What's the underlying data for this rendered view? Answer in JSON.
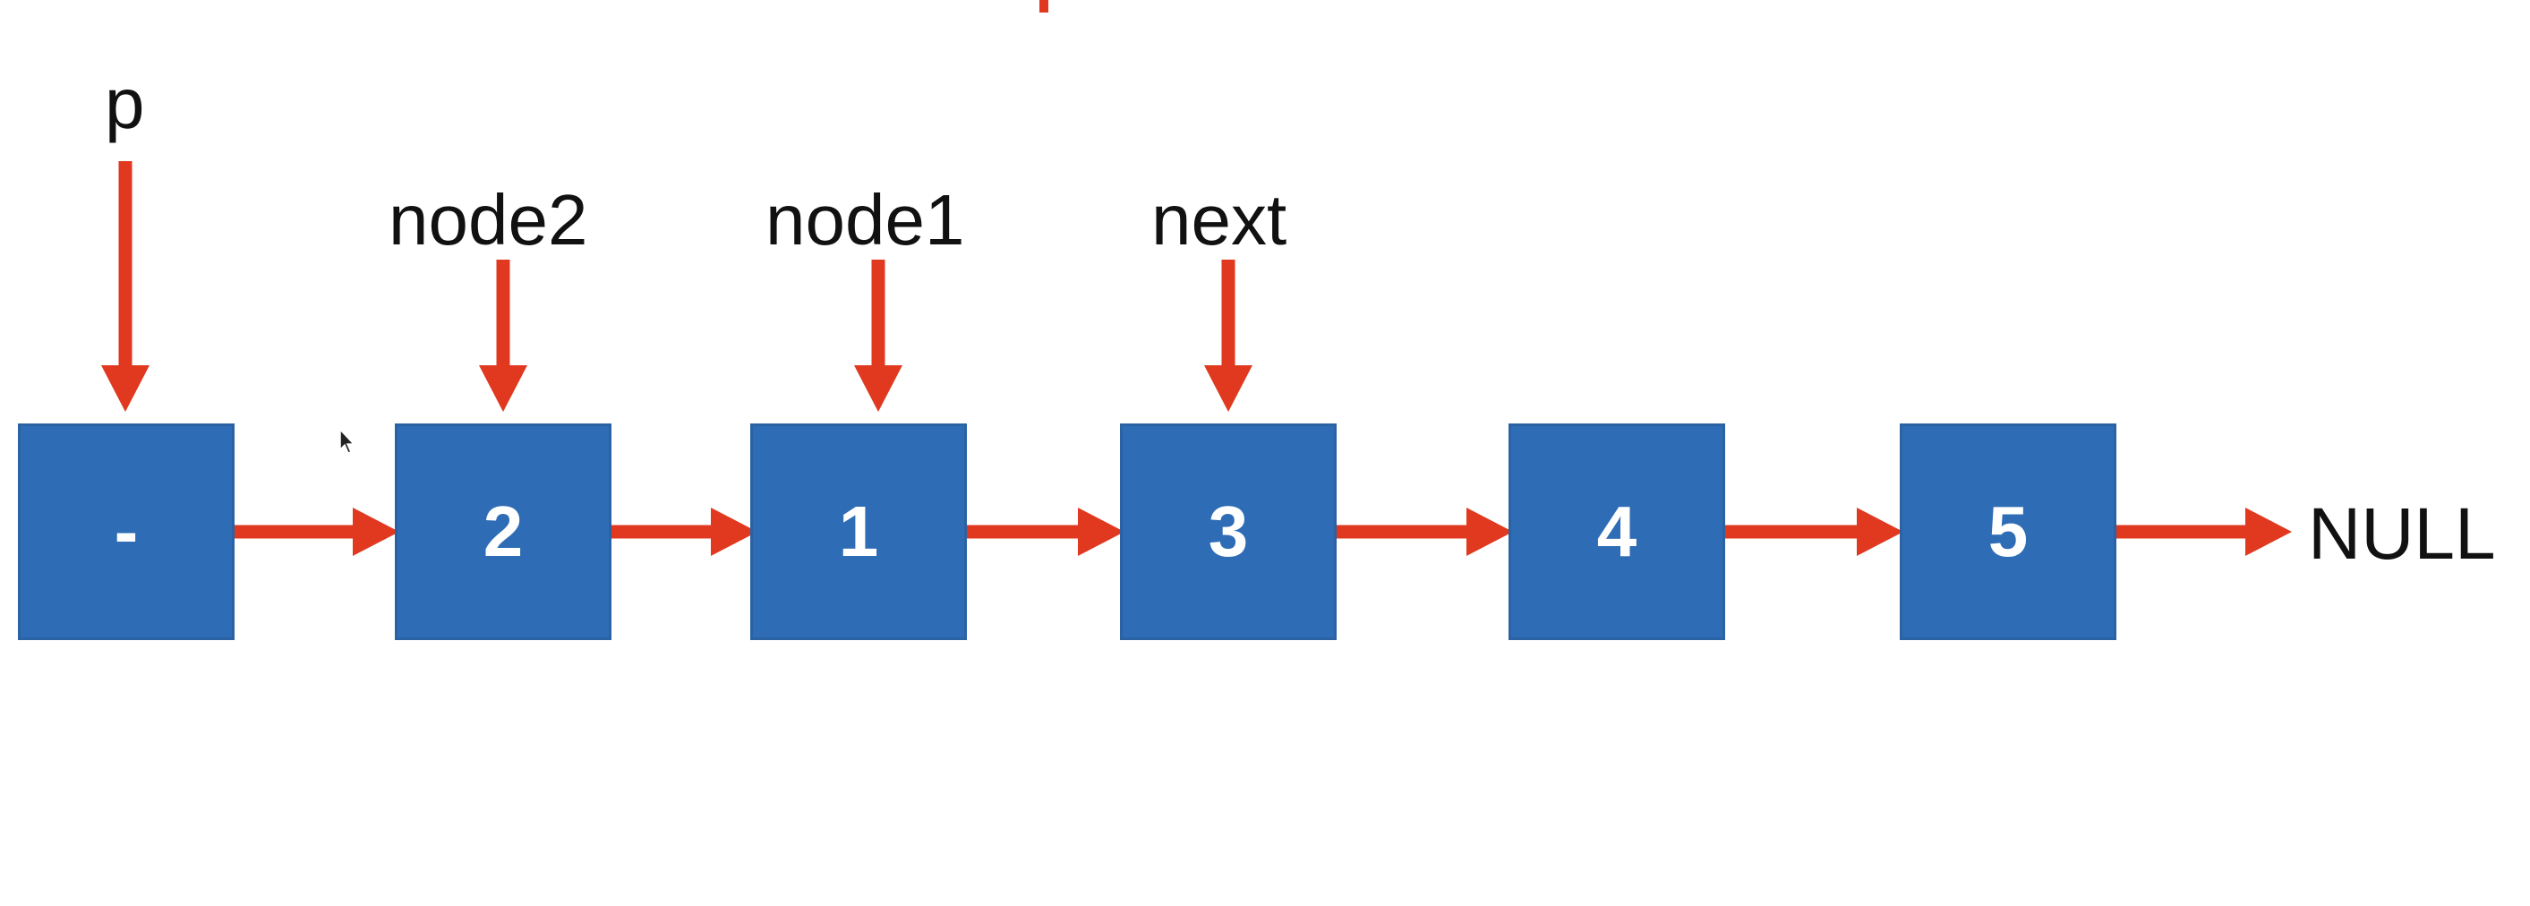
{
  "colors": {
    "node_fill": "#2e6db5",
    "node_edge": "#2a62a4",
    "arrow": "#e0391f",
    "text_dark": "#111111",
    "text_light": "#ffffff"
  },
  "nodes": [
    {
      "value": "-"
    },
    {
      "value": "2"
    },
    {
      "value": "1"
    },
    {
      "value": "3"
    },
    {
      "value": "4"
    },
    {
      "value": "5"
    }
  ],
  "pointers": [
    {
      "label": "p",
      "target_node": 0
    },
    {
      "label": "node2",
      "target_node": 1
    },
    {
      "label": "node1",
      "target_node": 2
    },
    {
      "label": "next",
      "target_node": 3
    }
  ],
  "terminal": {
    "label": "NULL"
  },
  "icons": {
    "cursor": "mouse-pointer-icon"
  }
}
